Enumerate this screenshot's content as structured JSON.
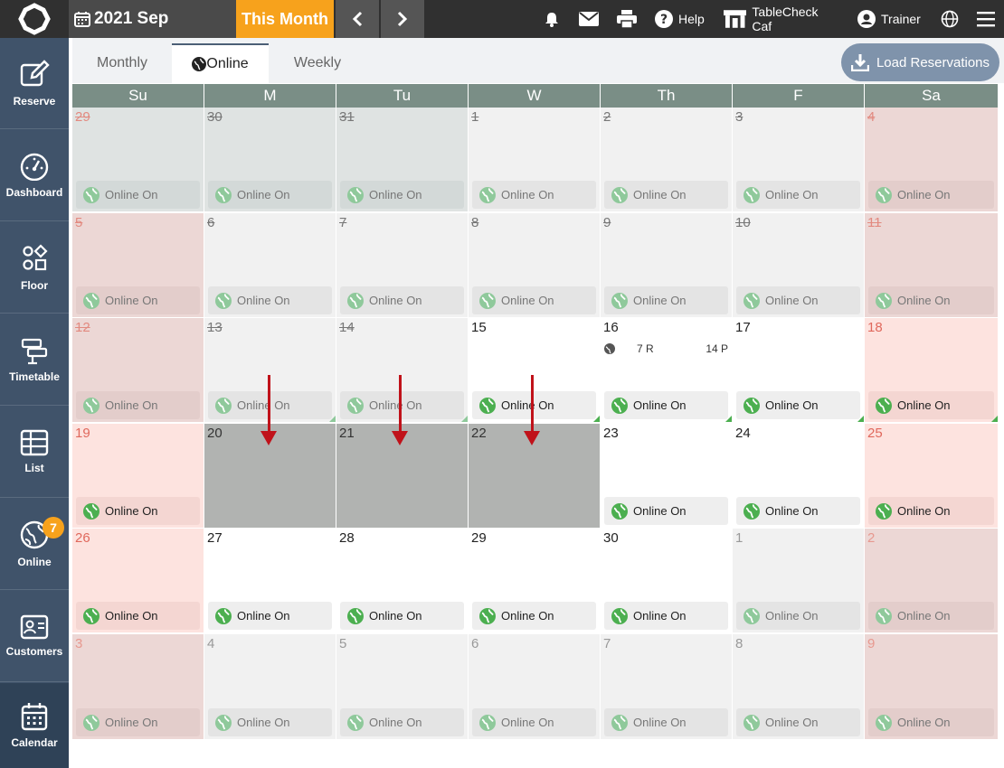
{
  "topbar": {
    "month_label": "2021 Sep",
    "this_month": "This Month",
    "help": "Help",
    "store": "TableCheck Caf",
    "user": "Trainer"
  },
  "sidebar": {
    "items": [
      {
        "label": "Reserve",
        "icon": "pencil-icon"
      },
      {
        "label": "Dashboard",
        "icon": "gauge-icon"
      },
      {
        "label": "Floor",
        "icon": "floor-shapes-icon"
      },
      {
        "label": "Timetable",
        "icon": "timetable-icon"
      },
      {
        "label": "List",
        "icon": "list-grid-icon"
      },
      {
        "label": "Online",
        "icon": "globe-icon",
        "badge": "7"
      },
      {
        "label": "Customers",
        "icon": "customer-card-icon"
      },
      {
        "label": "Calendar",
        "icon": "calendar-icon"
      }
    ]
  },
  "tabs": [
    {
      "label": "Monthly"
    },
    {
      "label": "Online"
    },
    {
      "label": "Weekly"
    }
  ],
  "load_button": "Load Reservations",
  "weekdays": [
    "Su",
    "M",
    "Tu",
    "W",
    "Th",
    "F",
    "Sa"
  ],
  "chip_label": "Online On",
  "weeks": [
    [
      "29",
      "30",
      "31",
      "1",
      "2",
      "3",
      "4"
    ],
    [
      "5",
      "6",
      "7",
      "8",
      "9",
      "10",
      "11"
    ],
    [
      "12",
      "13",
      "14",
      "15",
      "16",
      "17",
      "18"
    ],
    [
      "19",
      "20",
      "21",
      "22",
      "23",
      "24",
      "25"
    ],
    [
      "26",
      "27",
      "28",
      "29",
      "30",
      "1",
      "2"
    ],
    [
      "3",
      "4",
      "5",
      "6",
      "7",
      "8",
      "9"
    ]
  ],
  "day16_stats": {
    "reservations": "7 R",
    "people": "14 P"
  },
  "colors": {
    "accent": "#f7a21c",
    "sidebar": "#40536a",
    "header": "#7a8e86",
    "online_green": "#4caf50",
    "arrow_red": "#c0121a"
  }
}
